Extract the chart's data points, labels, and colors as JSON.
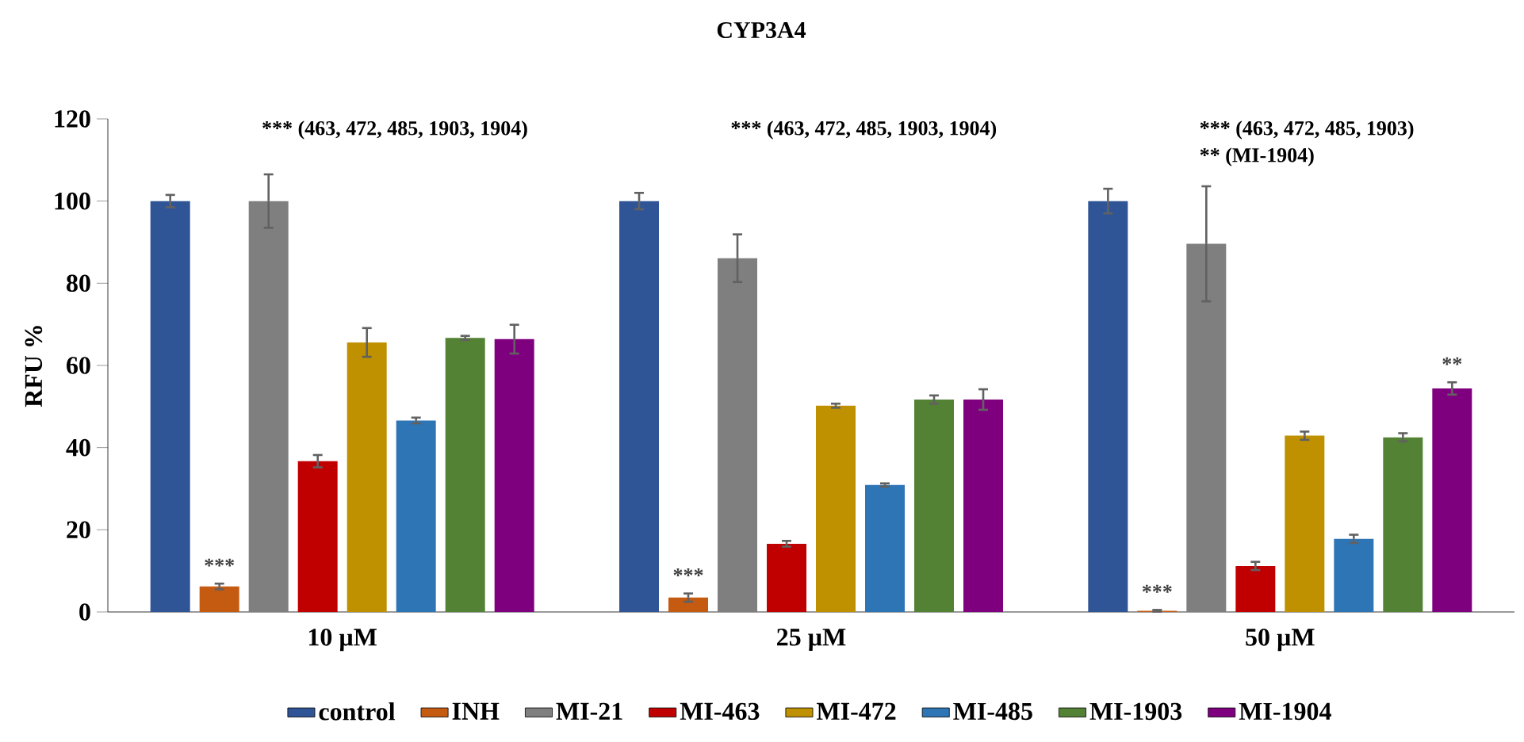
{
  "chart_data": {
    "type": "bar",
    "title": "CYP3A4",
    "ylabel": "RFU %",
    "categories": [
      "10 µM",
      "25 µM",
      "50 µM"
    ],
    "series": [
      {
        "name": "control",
        "color": "#2f5597",
        "values": [
          100,
          100,
          100
        ],
        "errors": [
          1.5,
          2,
          3
        ]
      },
      {
        "name": "INH",
        "color": "#c55a11",
        "values": [
          6.2,
          3.5,
          0.3
        ],
        "errors": [
          0.7,
          1,
          0.2
        ]
      },
      {
        "name": "MI-21",
        "color": "#7f7f7f",
        "values": [
          100,
          86.1,
          89.6
        ],
        "errors": [
          6.5,
          5.8,
          14
        ]
      },
      {
        "name": "MI-463",
        "color": "#c00000",
        "values": [
          36.7,
          16.6,
          11.2
        ],
        "errors": [
          1.5,
          0.7,
          1
        ]
      },
      {
        "name": "MI-472",
        "color": "#bf9000",
        "values": [
          65.6,
          50.2,
          42.9
        ],
        "errors": [
          3.5,
          0.5,
          1
        ]
      },
      {
        "name": "MI-485",
        "color": "#2e75b6",
        "values": [
          46.6,
          30.9,
          17.8
        ],
        "errors": [
          0.7,
          0.4,
          1
        ]
      },
      {
        "name": "MI-1903",
        "color": "#548235",
        "values": [
          66.7,
          51.7,
          42.5
        ],
        "errors": [
          0.5,
          1,
          1
        ]
      },
      {
        "name": "MI-1904",
        "color": "#7f007f",
        "values": [
          66.4,
          51.7,
          54.4
        ],
        "errors": [
          3.5,
          2.5,
          1.5
        ]
      }
    ],
    "ylim": [
      0,
      120
    ],
    "yticks": [
      0,
      20,
      40,
      60,
      80,
      100,
      120
    ],
    "legend": "bottom",
    "annotations": [
      "***",
      "***",
      "***",
      "**",
      "*** (463, 472, 485, 1903, 1904)",
      "*** (463, 472, 485, 1903, 1904)",
      "*** (463, 472, 485, 1903)",
      "** (MI-1904)"
    ]
  }
}
